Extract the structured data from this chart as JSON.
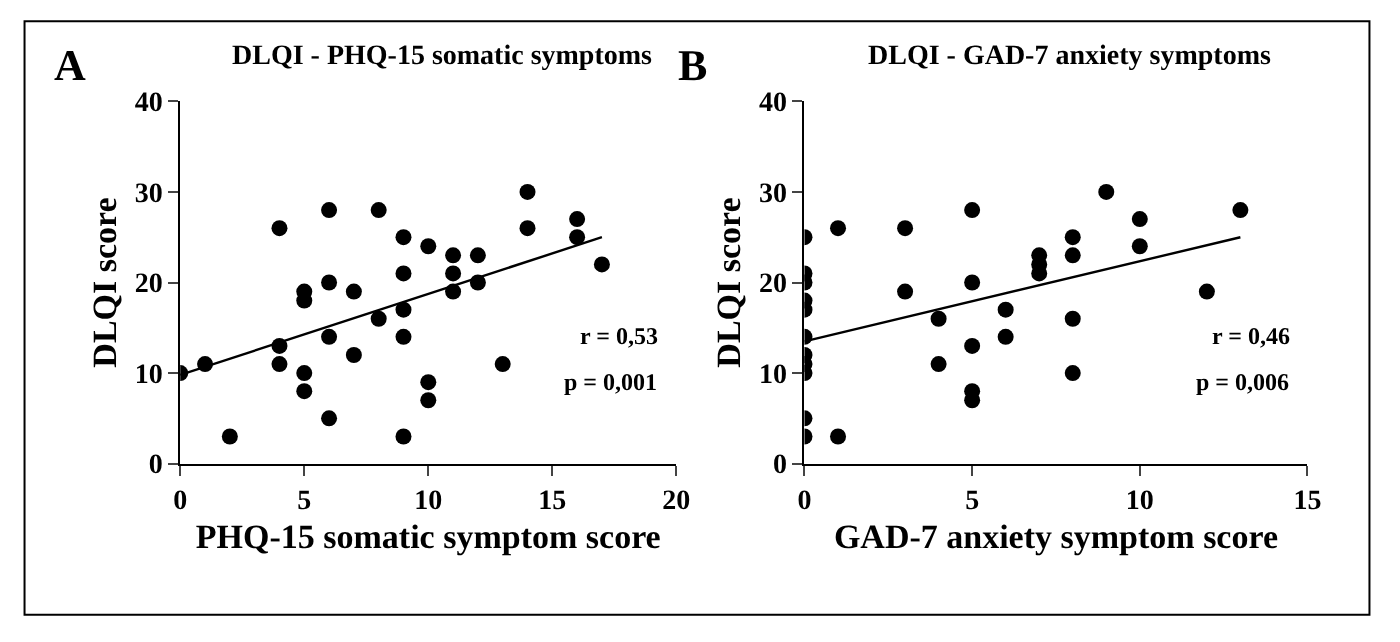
{
  "chart_data": [
    {
      "type": "scatter",
      "title": "DLQI - PHQ-15 somatic symptoms",
      "xlabel": "PHQ-15 somatic symptom score",
      "ylabel": "DLQI score",
      "annotations": [
        "A",
        "r = 0,53",
        "p = 0,001"
      ],
      "xlim": [
        0,
        20
      ],
      "xticks": [
        0,
        5,
        10,
        15,
        20
      ],
      "ylim": [
        0,
        40
      ],
      "yticks": [
        0,
        10,
        20,
        30,
        40
      ],
      "marker": "circle",
      "series": [
        {
          "type": "scatter",
          "color": "#000000",
          "x": [
            0,
            1,
            2,
            4,
            4,
            4,
            5,
            5,
            5,
            5,
            6,
            6,
            6,
            6,
            7,
            7,
            8,
            8,
            9,
            9,
            9,
            9,
            9,
            10,
            10,
            10,
            11,
            11,
            11,
            12,
            12,
            13,
            14,
            14,
            16,
            16,
            17
          ],
          "values": [
            10,
            11,
            3,
            26,
            13,
            11,
            19,
            18,
            10,
            8,
            28,
            20,
            14,
            5,
            19,
            12,
            28,
            16,
            25,
            21,
            17,
            14,
            3,
            24,
            9,
            7,
            23,
            21,
            19,
            23,
            20,
            11,
            30,
            26,
            27,
            25,
            22
          ]
        },
        {
          "type": "line",
          "color": "#000000",
          "marker": "none",
          "x": [
            0,
            17
          ],
          "values": [
            9.8,
            25
          ]
        }
      ]
    },
    {
      "type": "scatter",
      "title": "DLQI - GAD-7 anxiety symptoms",
      "xlabel": "GAD-7 anxiety symptom score",
      "ylabel": "DLQI score",
      "annotations": [
        "B",
        "r = 0,46",
        "p = 0,006"
      ],
      "xlim": [
        0,
        15
      ],
      "xticks": [
        0,
        5,
        10,
        15
      ],
      "ylim": [
        0,
        40
      ],
      "yticks": [
        0,
        10,
        20,
        30,
        40
      ],
      "marker": "circle",
      "series": [
        {
          "type": "scatter",
          "color": "#000000",
          "x": [
            0,
            0,
            0,
            0,
            0,
            0,
            0,
            0,
            0,
            0,
            0,
            1,
            1,
            3,
            3,
            4,
            4,
            5,
            5,
            5,
            5,
            5,
            6,
            6,
            7,
            7,
            7,
            8,
            8,
            8,
            8,
            9,
            10,
            10,
            12,
            13
          ],
          "values": [
            25,
            21,
            20,
            18,
            17,
            14,
            12,
            11,
            10,
            5,
            3,
            26,
            3,
            26,
            19,
            16,
            11,
            28,
            20,
            13,
            8,
            7,
            17,
            14,
            23,
            22,
            21,
            25,
            23,
            16,
            10,
            30,
            27,
            24,
            19,
            28
          ]
        },
        {
          "type": "line",
          "color": "#000000",
          "marker": "none",
          "x": [
            0,
            13
          ],
          "values": [
            13.5,
            25
          ]
        }
      ]
    }
  ]
}
